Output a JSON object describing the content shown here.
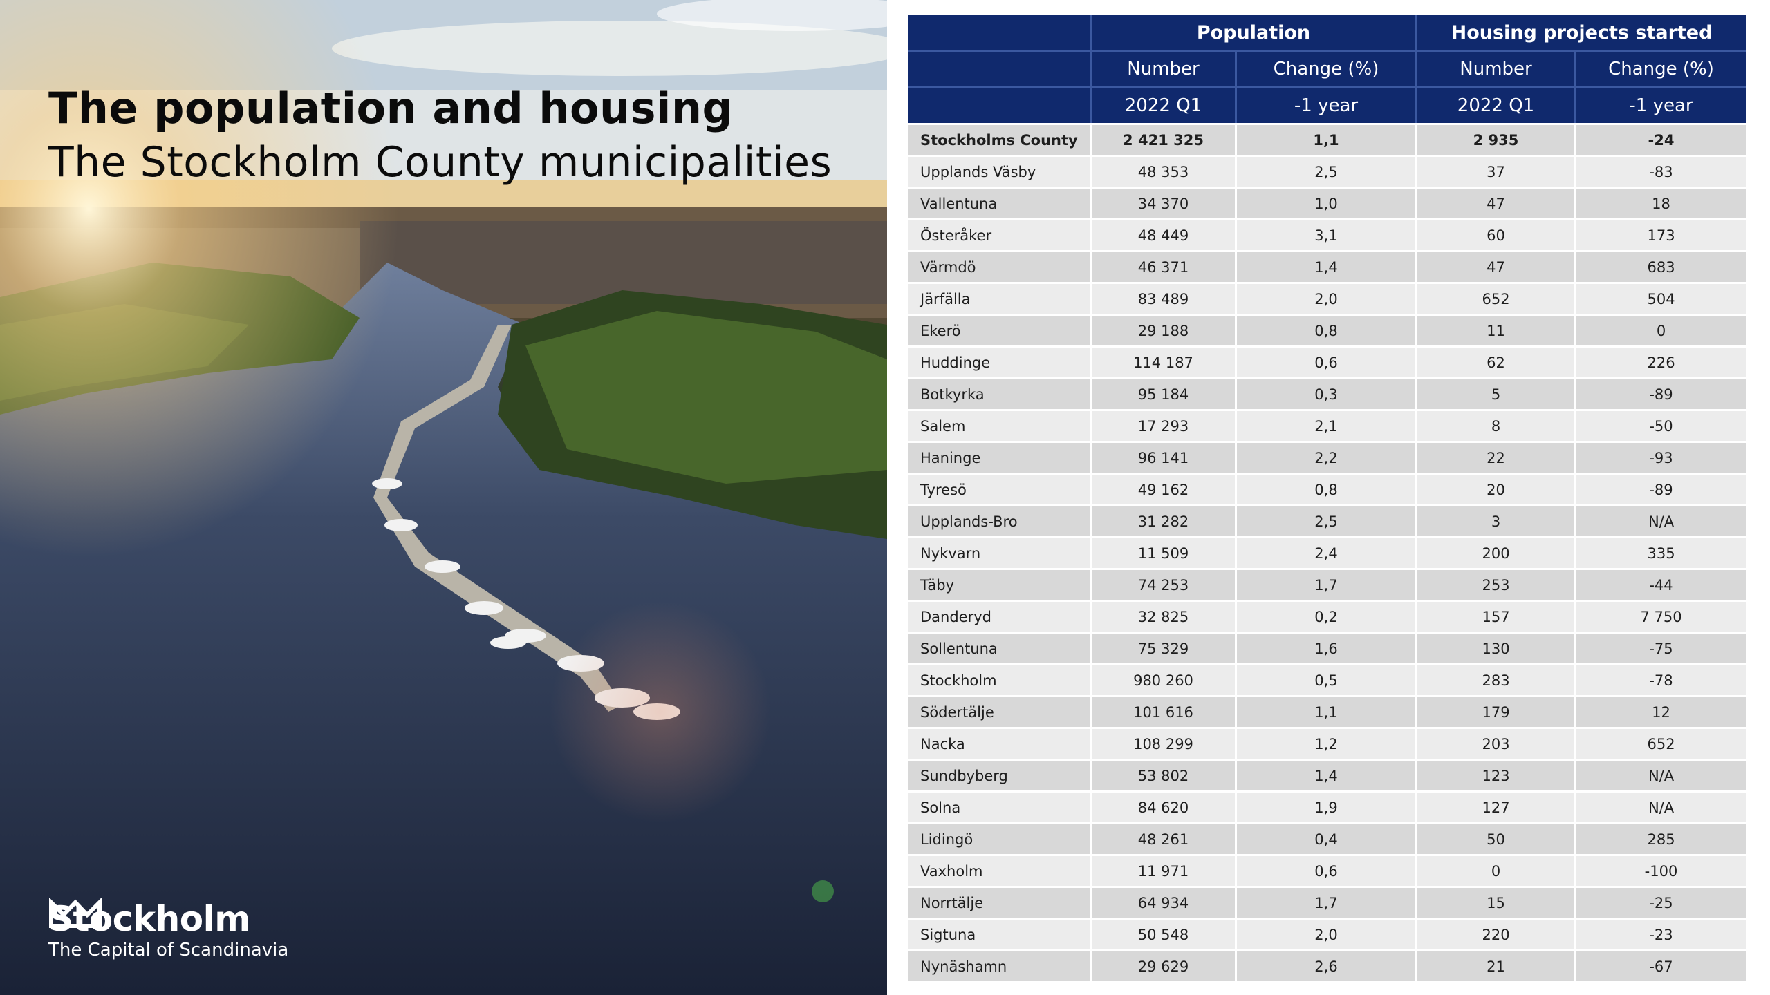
{
  "title": {
    "main": "The population and housing",
    "sub": "The Stockholm County municipalities"
  },
  "logo": {
    "icon": "crown-icon",
    "name": "Stockholm",
    "tagline": "The Capital of Scandinavia"
  },
  "table": {
    "groups": [
      "Population",
      "Housing projects started"
    ],
    "columns": [
      "Number",
      "Change (%)",
      "Number",
      "Change (%)"
    ],
    "subcolumns": [
      "2022 Q1",
      "-1 year",
      "2022 Q1",
      "-1 year"
    ],
    "rows": [
      [
        "Stockholms County",
        "2 421 325",
        "1,1",
        "2 935",
        "-24"
      ],
      [
        "Upplands Väsby",
        "48 353",
        "2,5",
        "37",
        "-83"
      ],
      [
        "Vallentuna",
        "34 370",
        "1,0",
        "47",
        "18"
      ],
      [
        "Österåker",
        "48 449",
        "3,1",
        "60",
        "173"
      ],
      [
        "Värmdö",
        "46 371",
        "1,4",
        "47",
        "683"
      ],
      [
        "Järfälla",
        "83 489",
        "2,0",
        "652",
        "504"
      ],
      [
        "Ekerö",
        "29 188",
        "0,8",
        "11",
        "0"
      ],
      [
        "Huddinge",
        "114 187",
        "0,6",
        "62",
        "226"
      ],
      [
        "Botkyrka",
        "95 184",
        "0,3",
        "5",
        "-89"
      ],
      [
        "Salem",
        "17 293",
        "2,1",
        "8",
        "-50"
      ],
      [
        "Haninge",
        "96 141",
        "2,2",
        "22",
        "-93"
      ],
      [
        "Tyresö",
        "49 162",
        "0,8",
        "20",
        "-89"
      ],
      [
        "Upplands-Bro",
        "31 282",
        "2,5",
        "3",
        "N/A"
      ],
      [
        "Nykvarn",
        "11 509",
        "2,4",
        "200",
        "335"
      ],
      [
        "Täby",
        "74 253",
        "1,7",
        "253",
        "-44"
      ],
      [
        "Danderyd",
        "32 825",
        "0,2",
        "157",
        "7 750"
      ],
      [
        "Sollentuna",
        "75 329",
        "1,6",
        "130",
        "-75"
      ],
      [
        "Stockholm",
        "980 260",
        "0,5",
        "283",
        "-78"
      ],
      [
        "Södertälje",
        "101 616",
        "1,1",
        "179",
        "12"
      ],
      [
        "Nacka",
        "108 299",
        "1,2",
        "203",
        "652"
      ],
      [
        "Sundbyberg",
        "53 802",
        "1,4",
        "123",
        "N/A"
      ],
      [
        "Solna",
        "84 620",
        "1,9",
        "127",
        "N/A"
      ],
      [
        "Lidingö",
        "48 261",
        "0,4",
        "50",
        "285"
      ],
      [
        "Vaxholm",
        "11 971",
        "0,6",
        "0",
        "-100"
      ],
      [
        "Norrtälje",
        "64 934",
        "1,7",
        "15",
        "-25"
      ],
      [
        "Sigtuna",
        "50 548",
        "2,0",
        "220",
        "-23"
      ],
      [
        "Nynäshamn",
        "29 629",
        "2,6",
        "21",
        "-67"
      ]
    ]
  }
}
